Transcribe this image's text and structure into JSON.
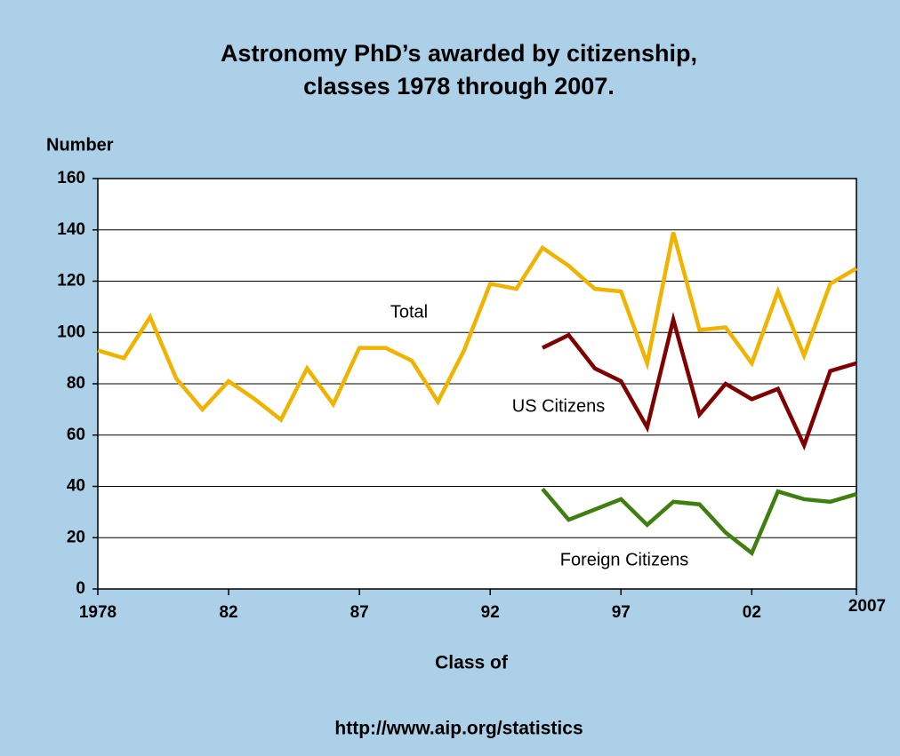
{
  "chart_data": {
    "type": "line",
    "title": [
      "Astronomy PhD’s awarded by citizenship,",
      "classes 1978 through 2007."
    ],
    "ylabel": "Number",
    "xlabel": "Class of",
    "source": "http://www.aip.org/statistics",
    "categories": [
      "1978",
      null,
      null,
      null,
      null,
      "82",
      null,
      null,
      null,
      null,
      "87",
      null,
      null,
      null,
      null,
      "92",
      null,
      null,
      null,
      null,
      "97",
      null,
      null,
      null,
      null,
      "02",
      null,
      null,
      null,
      "2007"
    ],
    "series": [
      {
        "name": "Total",
        "color": "#f0b400",
        "values": [
          93,
          90,
          106,
          82,
          70,
          81,
          74,
          66,
          86,
          72,
          94,
          94,
          89,
          73,
          93,
          119,
          117,
          133,
          126,
          117,
          116,
          88,
          139,
          101,
          102,
          88,
          116,
          91,
          119,
          125
        ]
      },
      {
        "name": "US Citizens",
        "color": "#800000",
        "values": [
          null,
          null,
          null,
          null,
          null,
          null,
          null,
          null,
          null,
          null,
          null,
          null,
          null,
          null,
          null,
          null,
          null,
          94,
          99,
          86,
          81,
          63,
          105,
          68,
          80,
          74,
          78,
          56,
          85,
          88
        ]
      },
      {
        "name": "Foreign Citizens",
        "color": "#3f7f10",
        "values": [
          null,
          null,
          null,
          null,
          null,
          null,
          null,
          null,
          null,
          null,
          null,
          null,
          null,
          null,
          null,
          null,
          null,
          39,
          27,
          31,
          35,
          25,
          34,
          33,
          22,
          14,
          38,
          35,
          34,
          37
        ]
      }
    ],
    "ylim": [
      0,
      160
    ],
    "yticks": [
      0,
      20,
      40,
      60,
      80,
      100,
      120,
      140,
      160
    ],
    "grid": true
  }
}
